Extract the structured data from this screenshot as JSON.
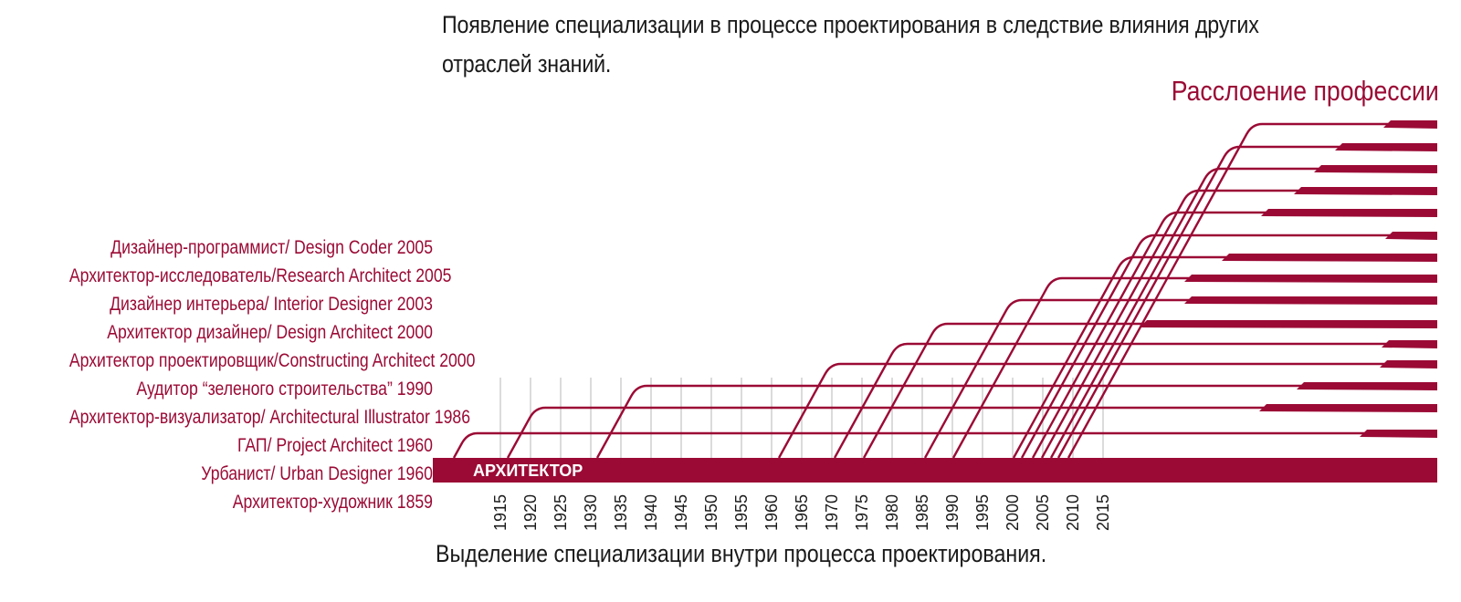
{
  "title": "Появление специализации в процессе проектирования в следствие влияния других отраслей знаний.",
  "heading": "Расслоение профессии",
  "footer": "Выделение специализации внутри процесса проектирования.",
  "base_label": "АРХИТЕКТОР",
  "accent_color": "#9b0a35",
  "roles": [
    "Дизайнер-программист/ Design Coder 2005",
    "Архитектор-исследователь/Research Architect 2005",
    "Дизайнер интерьера/ Interior Designer 2003",
    "Архитектор дизайнер/ Design Architect 2000",
    "Архитектор проектировщик/Constructing Architect 2000",
    "Аудитор “зеленого строительства” 1990",
    "Архитектор-визуализатор/ Architectural Illustrator 1986",
    "ГАП/ Project Architect 1960",
    "Урбанист/ Urban Designer 1960",
    "Архитектор-художник 1859"
  ],
  "years": [
    "1915",
    "1920",
    "1925",
    "1930",
    "1935",
    "1940",
    "1945",
    "1950",
    "1955",
    "1960",
    "1965",
    "1970",
    "1975",
    "1980",
    "1985",
    "1990",
    "1995",
    "2000",
    "2005",
    "2010",
    "2015"
  ]
}
